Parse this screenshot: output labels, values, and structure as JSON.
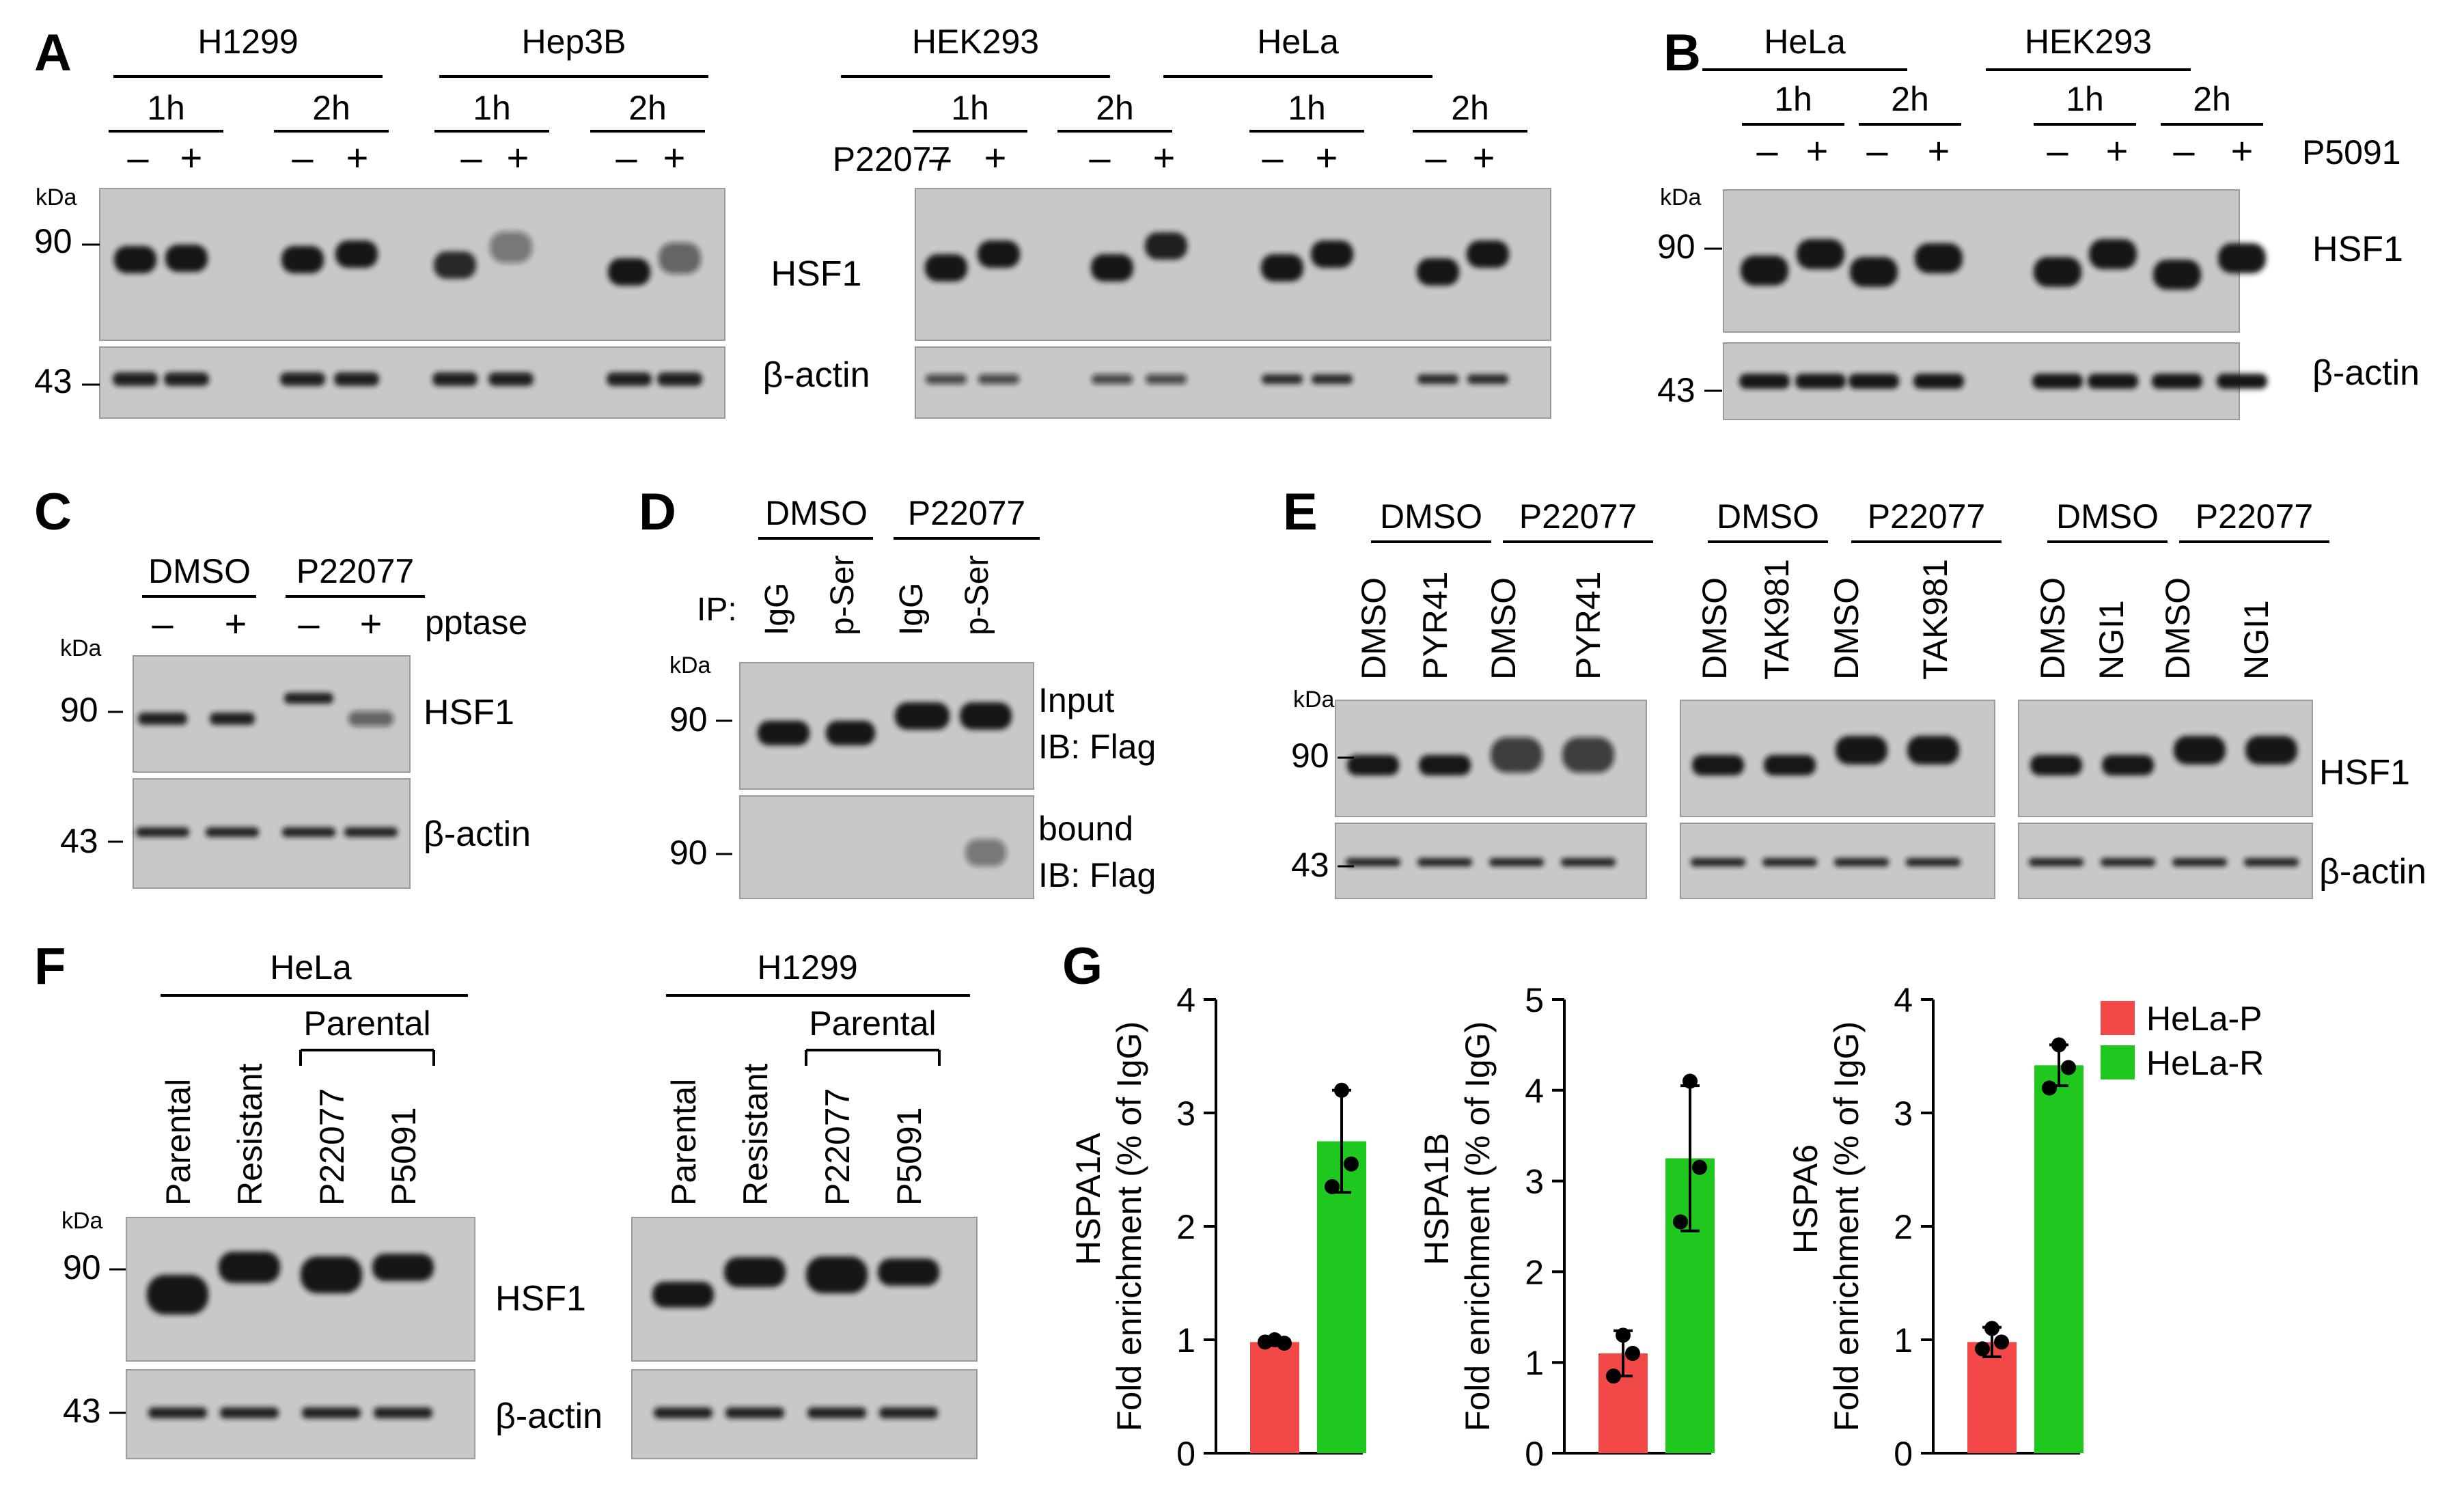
{
  "panels": {
    "A": {
      "letter": "A",
      "groups": [
        {
          "cell": "H1299",
          "times": [
            "1h",
            "2h"
          ]
        },
        {
          "cell": "Hep3B",
          "times": [
            "1h",
            "2h"
          ]
        },
        {
          "cell": "HEK293",
          "times": [
            "1h",
            "2h"
          ]
        },
        {
          "cell": "HeLa",
          "times": [
            "1h",
            "2h"
          ]
        }
      ],
      "treatment": "P22077",
      "minus": "–",
      "plus": "+",
      "kda": "kDa",
      "mw": [
        "90",
        "43"
      ],
      "proteins": [
        "HSF1",
        "β-actin"
      ]
    },
    "B": {
      "letter": "B",
      "groups": [
        {
          "cell": "HeLa",
          "times": [
            "1h",
            "2h"
          ]
        },
        {
          "cell": "HEK293",
          "times": [
            "1h",
            "2h"
          ]
        }
      ],
      "treatment": "P5091",
      "minus": "–",
      "plus": "+",
      "kda": "kDa",
      "mw": [
        "90",
        "43"
      ],
      "proteins": [
        "HSF1",
        "β-actin"
      ]
    },
    "C": {
      "letter": "C",
      "groups": [
        "DMSO",
        "P22077"
      ],
      "treatment": "pptase",
      "minus": "–",
      "plus": "+",
      "kda": "kDa",
      "mw": [
        "90",
        "43"
      ],
      "proteins": [
        "HSF1",
        "β-actin"
      ]
    },
    "D": {
      "letter": "D",
      "groups": [
        "DMSO",
        "P22077"
      ],
      "ip_label": "IP:",
      "lanes": [
        "IgG",
        "p-Ser",
        "IgG",
        "p-Ser"
      ],
      "kda": "kDa",
      "mw": [
        "90",
        "90"
      ],
      "blot_labels": [
        [
          "Input",
          "IB: Flag"
        ],
        [
          "bound",
          "IB: Flag"
        ]
      ]
    },
    "E": {
      "letter": "E",
      "blocks": [
        {
          "groups": [
            "DMSO",
            "P22077"
          ],
          "lanes": [
            "DMSO",
            "PYR41",
            "DMSO",
            "PYR41"
          ]
        },
        {
          "groups": [
            "DMSO",
            "P22077"
          ],
          "lanes": [
            "DMSO",
            "TAK981",
            "DMSO",
            "TAK981"
          ]
        },
        {
          "groups": [
            "DMSO",
            "P22077"
          ],
          "lanes": [
            "DMSO",
            "NGI1",
            "DMSO",
            "NGI1"
          ]
        }
      ],
      "kda": "kDa",
      "mw": [
        "90",
        "43"
      ],
      "proteins": [
        "HSF1",
        "β-actin"
      ]
    },
    "F": {
      "letter": "F",
      "blocks": [
        {
          "cell": "HeLa",
          "bracket": "Parental",
          "lanes": [
            "Parental",
            "Resistant",
            "P22077",
            "P5091"
          ]
        },
        {
          "cell": "H1299",
          "bracket": "Parental",
          "lanes": [
            "Parental",
            "Resistant",
            "P22077",
            "P5091"
          ]
        }
      ],
      "kda": "kDa",
      "mw": [
        "90",
        "43"
      ],
      "proteins": [
        "HSF1",
        "β-actin"
      ]
    },
    "G": {
      "letter": "G",
      "legend": [
        "HeLa-P",
        "HeLa-R"
      ]
    }
  },
  "colors": {
    "parental": "#f24848",
    "resistant": "#1ec81e",
    "blot_bg": "#c8c8c8",
    "band": "#141414"
  },
  "chart_data": [
    {
      "type": "bar",
      "title": "HSPA1A",
      "ylabel": "Fold enrichment (% of IgG)",
      "ylim": [
        0,
        4
      ],
      "yticks": [
        0,
        1,
        2,
        3,
        4
      ],
      "categories": [
        "HeLa-P",
        "HeLa-R"
      ],
      "values": [
        0.98,
        2.75
      ],
      "errors": [
        0.03,
        0.45
      ],
      "points": [
        [
          1.0,
          0.97,
          0.98
        ],
        [
          3.2,
          2.55,
          2.35
        ]
      ]
    },
    {
      "type": "bar",
      "title": "HSPA1B",
      "ylabel": "Fold enrichment (% of IgG)",
      "ylim": [
        0,
        5
      ],
      "yticks": [
        0,
        1,
        2,
        3,
        4,
        5
      ],
      "categories": [
        "HeLa-P",
        "HeLa-R"
      ],
      "values": [
        1.1,
        3.25
      ],
      "errors": [
        0.25,
        0.8
      ],
      "points": [
        [
          1.3,
          1.1,
          0.85
        ],
        [
          4.1,
          3.15,
          2.55
        ]
      ]
    },
    {
      "type": "bar",
      "title": "HSPA6",
      "ylabel": "Fold enrichment (% of IgG)",
      "ylim": [
        0,
        4
      ],
      "yticks": [
        0,
        1,
        2,
        3,
        4
      ],
      "categories": [
        "HeLa-P",
        "HeLa-R"
      ],
      "values": [
        0.98,
        3.42
      ],
      "errors": [
        0.13,
        0.18
      ],
      "points": [
        [
          1.1,
          0.98,
          0.92
        ],
        [
          3.6,
          3.4,
          3.22
        ]
      ]
    }
  ]
}
